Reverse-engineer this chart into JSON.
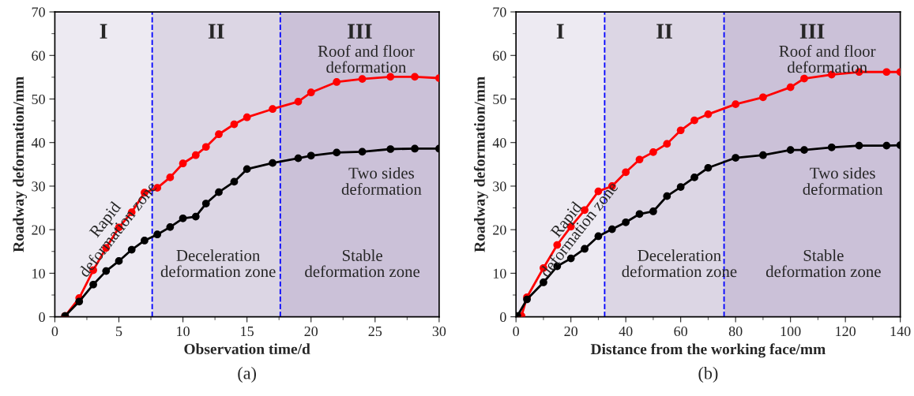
{
  "chart_data": [
    {
      "type": "line",
      "xlabel": "Observation time/d",
      "ylabel": "Roadway deformation/mm",
      "xlim": [
        0,
        30
      ],
      "ylim": [
        0,
        70
      ],
      "xticks": [
        0,
        5,
        10,
        15,
        20,
        25,
        30
      ],
      "yticks": [
        0,
        10,
        20,
        30,
        40,
        50,
        60,
        70
      ],
      "grid": false,
      "legend": false,
      "marker": "circle",
      "line_style": "solid",
      "series": [
        {
          "name": "Roof and floor deformation",
          "color": "#ff0000",
          "x": [
            0.8,
            1.9,
            3,
            4,
            5,
            6,
            7,
            8,
            9,
            10,
            11,
            11.8,
            12.8,
            14,
            15,
            17,
            19,
            20,
            22,
            24,
            26.2,
            28.1,
            30
          ],
          "values": [
            0.2,
            4.3,
            10.7,
            15.8,
            20.5,
            24,
            28.5,
            29.6,
            32,
            35.2,
            37.1,
            39,
            41.9,
            44.2,
            45.8,
            47.7,
            49.4,
            51.5,
            53.9,
            54.6,
            55.1,
            55.1,
            54.8
          ]
        },
        {
          "name": "Two sides deformation",
          "color": "#000000",
          "x": [
            0.8,
            1.9,
            3,
            4,
            5,
            6,
            7,
            8,
            9,
            10,
            11,
            11.8,
            12.8,
            14,
            15,
            17,
            19,
            20,
            22,
            24,
            26.2,
            28.1,
            30
          ],
          "values": [
            0.2,
            3.5,
            7.4,
            10.5,
            12.8,
            15.4,
            17.5,
            18.9,
            20.6,
            22.6,
            23,
            26,
            28.6,
            31,
            33.9,
            35.3,
            36.4,
            37,
            37.7,
            37.9,
            38.5,
            38.6,
            38.6
          ]
        }
      ],
      "bands": [
        {
          "axis": "x",
          "from": 0,
          "to": 7.6,
          "label": "I",
          "color": "#edeaf2"
        },
        {
          "axis": "x",
          "from": 7.6,
          "to": 17.6,
          "label": "II",
          "color": "#dcd6e4"
        },
        {
          "axis": "x",
          "from": 17.6,
          "to": 30,
          "label": "III",
          "color": "#cbc1d8"
        }
      ],
      "ref_lines": [
        {
          "axis": "x",
          "value": 7.6,
          "color": "#0000ff",
          "line_style": "dashed"
        },
        {
          "axis": "x",
          "value": 17.6,
          "color": "#0000ff",
          "line_style": "dashed"
        }
      ],
      "annotations": [
        "Rapid\ndeformation zone",
        "Deceleration\ndeformation zone",
        "Stable\ndeformation zone",
        "(a)"
      ]
    },
    {
      "type": "line",
      "xlabel": "Distance from the working face/mm",
      "ylabel": "Roadway deformation/mm",
      "xlim": [
        0,
        140
      ],
      "ylim": [
        0,
        70
      ],
      "xticks": [
        0,
        20,
        40,
        60,
        80,
        100,
        120,
        140
      ],
      "yticks": [
        0,
        10,
        20,
        30,
        40,
        50,
        60,
        70
      ],
      "grid": false,
      "legend": false,
      "marker": "circle",
      "line_style": "solid",
      "series": [
        {
          "name": "Roof and floor deformation",
          "color": "#ff0000",
          "x": [
            2,
            4,
            10,
            15,
            20,
            25,
            30,
            35,
            40,
            45,
            50,
            55,
            60,
            65,
            70,
            80,
            90,
            100,
            105,
            115,
            125,
            135,
            140
          ],
          "values": [
            0.2,
            4.5,
            11.2,
            16.5,
            20.7,
            24.5,
            28.8,
            30,
            33.2,
            36.1,
            37.8,
            39.7,
            42.8,
            45.1,
            46.5,
            48.8,
            50.4,
            52.7,
            54.7,
            55.6,
            56.2,
            56.2,
            56.2
          ]
        },
        {
          "name": "Two sides deformation",
          "color": "#000000",
          "x": [
            0.5,
            4,
            10,
            15,
            20,
            25,
            30,
            35,
            40,
            45,
            50,
            55,
            60,
            65,
            70,
            80,
            90,
            100,
            105,
            115,
            125,
            135,
            140
          ],
          "values": [
            0.2,
            4,
            7.9,
            11.6,
            13.4,
            15.6,
            18.5,
            20.1,
            21.7,
            23.6,
            24.2,
            27.7,
            29.8,
            32,
            34.2,
            36.5,
            37.1,
            38.3,
            38.3,
            38.9,
            39.3,
            39.3,
            39.4
          ]
        }
      ],
      "bands": [
        {
          "axis": "x",
          "from": 0,
          "to": 32.3,
          "label": "I",
          "color": "#edeaf2"
        },
        {
          "axis": "x",
          "from": 32.3,
          "to": 75.8,
          "label": "II",
          "color": "#dcd6e4"
        },
        {
          "axis": "x",
          "from": 75.8,
          "to": 140,
          "label": "III",
          "color": "#cbc1d8"
        }
      ],
      "ref_lines": [
        {
          "axis": "x",
          "value": 32.3,
          "color": "#0000ff",
          "line_style": "dashed"
        },
        {
          "axis": "x",
          "value": 75.8,
          "color": "#0000ff",
          "line_style": "dashed"
        }
      ],
      "annotations": [
        "Rapid\ndeformation zone",
        "Deceleration\ndeformation zone",
        "Stable\ndeformation zone",
        "(b)"
      ]
    }
  ]
}
